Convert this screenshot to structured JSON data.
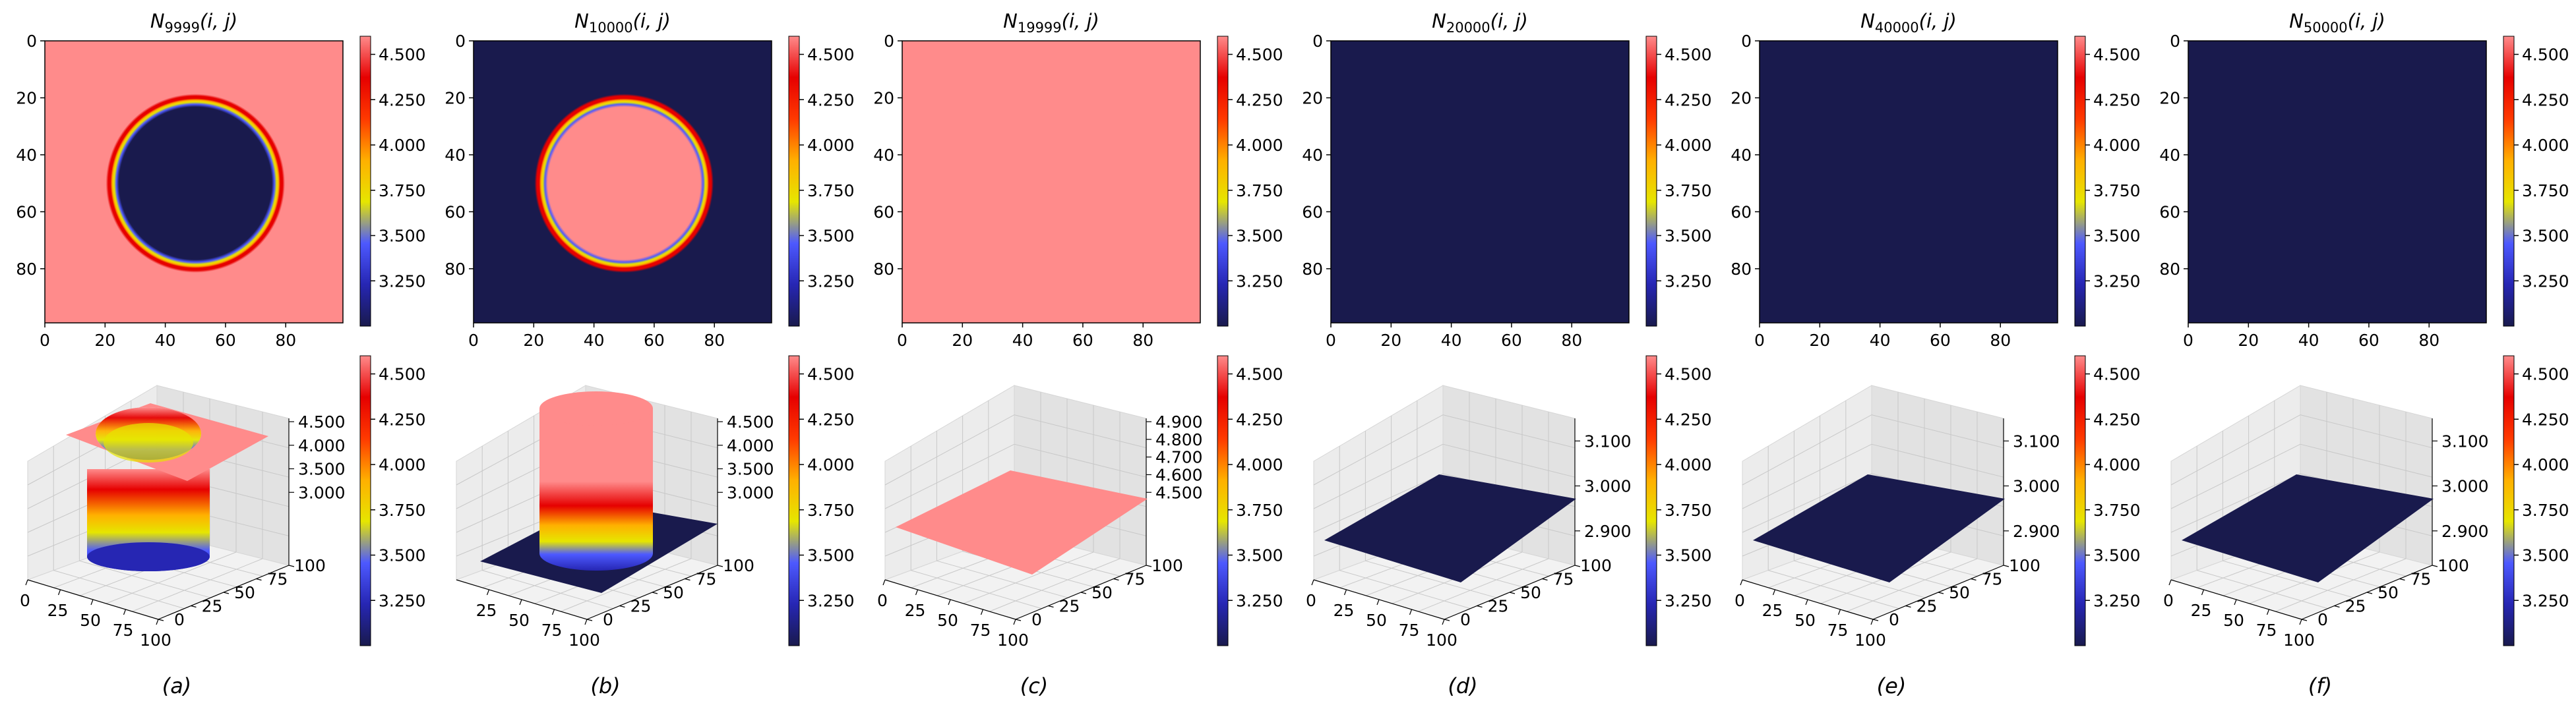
{
  "figure": {
    "caption_labels": [
      "(a)",
      "(b)",
      "(c)",
      "(d)",
      "(e)",
      "(f)"
    ]
  },
  "colors": {
    "low": "#191a4d",
    "high": "#ff8b8b",
    "colormap": [
      "#191a4d",
      "#2626b3",
      "#4d59ff",
      "#e6e600",
      "#ffb000",
      "#ff3a00",
      "#e60000",
      "#ff8b8b"
    ]
  },
  "chart_data": [
    {
      "type": "heatmap",
      "panel": "a",
      "title_base": "N",
      "title_sub": "9999",
      "title_args": "(i, j)",
      "pattern": "ring-high-outside",
      "ring": {
        "center_x": 50,
        "center_y": 50,
        "radius": 31
      },
      "xticks": [
        "0",
        "20",
        "40",
        "60",
        "80"
      ],
      "yticks": [
        "0",
        "20",
        "40",
        "60",
        "80"
      ],
      "xlim": [
        0,
        99
      ],
      "ylim": [
        0,
        99
      ],
      "colorbar": {
        "range": [
          3.0,
          4.6
        ],
        "ticks": [
          "4.500",
          "4.250",
          "4.000",
          "3.750",
          "3.500",
          "3.250"
        ]
      }
    },
    {
      "type": "heatmap",
      "panel": "b",
      "title_base": "N",
      "title_sub": "10000",
      "title_args": "(i, j)",
      "pattern": "ring-high-inside",
      "ring": {
        "center_x": 50,
        "center_y": 50,
        "radius": 31
      },
      "xticks": [
        "0",
        "20",
        "40",
        "60",
        "80"
      ],
      "yticks": [
        "0",
        "20",
        "40",
        "60",
        "80"
      ],
      "xlim": [
        0,
        99
      ],
      "ylim": [
        0,
        99
      ],
      "colorbar": {
        "range": [
          3.0,
          4.6
        ],
        "ticks": [
          "4.500",
          "4.250",
          "4.000",
          "3.750",
          "3.500",
          "3.250"
        ]
      }
    },
    {
      "type": "heatmap",
      "panel": "c",
      "title_base": "N",
      "title_sub": "19999",
      "title_args": "(i, j)",
      "pattern": "uniform-high",
      "xticks": [
        "0",
        "20",
        "40",
        "60",
        "80"
      ],
      "yticks": [
        "0",
        "20",
        "40",
        "60",
        "80"
      ],
      "xlim": [
        0,
        99
      ],
      "ylim": [
        0,
        99
      ],
      "colorbar": {
        "range": [
          3.0,
          4.6
        ],
        "ticks": [
          "4.500",
          "4.250",
          "4.000",
          "3.750",
          "3.500",
          "3.250"
        ]
      }
    },
    {
      "type": "heatmap",
      "panel": "d",
      "title_base": "N",
      "title_sub": "20000",
      "title_args": "(i, j)",
      "pattern": "uniform-low",
      "xticks": [
        "0",
        "20",
        "40",
        "60",
        "80"
      ],
      "yticks": [
        "0",
        "20",
        "40",
        "60",
        "80"
      ],
      "xlim": [
        0,
        99
      ],
      "ylim": [
        0,
        99
      ],
      "colorbar": {
        "range": [
          3.0,
          4.6
        ],
        "ticks": [
          "4.500",
          "4.250",
          "4.000",
          "3.750",
          "3.500",
          "3.250"
        ]
      }
    },
    {
      "type": "heatmap",
      "panel": "e",
      "title_base": "N",
      "title_sub": "40000",
      "title_args": "(i, j)",
      "pattern": "uniform-low",
      "xticks": [
        "0",
        "20",
        "40",
        "60",
        "80"
      ],
      "yticks": [
        "0",
        "20",
        "40",
        "60",
        "80"
      ],
      "xlim": [
        0,
        99
      ],
      "ylim": [
        0,
        99
      ],
      "colorbar": {
        "range": [
          3.0,
          4.6
        ],
        "ticks": [
          "4.500",
          "4.250",
          "4.000",
          "3.750",
          "3.500",
          "3.250"
        ]
      }
    },
    {
      "type": "heatmap",
      "panel": "f",
      "title_base": "N",
      "title_sub": "50000",
      "title_args": "(i, j)",
      "pattern": "uniform-low",
      "xticks": [
        "0",
        "20",
        "40",
        "60",
        "80"
      ],
      "yticks": [
        "0",
        "20",
        "40",
        "60",
        "80"
      ],
      "xlim": [
        0,
        99
      ],
      "ylim": [
        0,
        99
      ],
      "colorbar": {
        "range": [
          3.0,
          4.6
        ],
        "ticks": [
          "4.500",
          "4.250",
          "4.000",
          "3.750",
          "3.500",
          "3.250"
        ]
      }
    },
    {
      "type": "surface3d",
      "panel": "a",
      "shape": "ring-well",
      "xticks": [
        "0",
        "25",
        "50",
        "75",
        "100"
      ],
      "yticks": [
        "0",
        "25",
        "50",
        "75",
        "100"
      ],
      "zticks": [
        "4.500",
        "4.000",
        "3.500",
        "3.000"
      ],
      "colorbar": {
        "range": [
          3.0,
          4.6
        ],
        "ticks": [
          "4.500",
          "4.250",
          "4.000",
          "3.750",
          "3.500",
          "3.250"
        ]
      }
    },
    {
      "type": "surface3d",
      "panel": "b",
      "shape": "cylinder",
      "xticks": [
        "25",
        "50",
        "75",
        "100"
      ],
      "yticks": [
        "0",
        "25",
        "50",
        "75",
        "100"
      ],
      "zticks": [
        "4.500",
        "4.000",
        "3.500",
        "3.000"
      ],
      "colorbar": {
        "range": [
          3.0,
          4.6
        ],
        "ticks": [
          "4.500",
          "4.250",
          "4.000",
          "3.750",
          "3.500",
          "3.250"
        ]
      }
    },
    {
      "type": "surface3d",
      "panel": "c",
      "shape": "flat-high",
      "xticks": [
        "0",
        "25",
        "50",
        "75",
        "100"
      ],
      "yticks": [
        "0",
        "25",
        "50",
        "75",
        "100"
      ],
      "zticks": [
        "4.900",
        "4.800",
        "4.700",
        "4.600",
        "4.500"
      ],
      "colorbar": {
        "range": [
          3.0,
          4.6
        ],
        "ticks": [
          "4.500",
          "4.250",
          "4.000",
          "3.750",
          "3.500",
          "3.250"
        ]
      }
    },
    {
      "type": "surface3d",
      "panel": "d",
      "shape": "flat-low",
      "xticks": [
        "0",
        "25",
        "50",
        "75",
        "100"
      ],
      "yticks": [
        "0",
        "25",
        "50",
        "75",
        "100"
      ],
      "zticks": [
        "3.100",
        "3.000",
        "2.900"
      ],
      "colorbar": {
        "range": [
          3.0,
          4.6
        ],
        "ticks": [
          "4.500",
          "4.250",
          "4.000",
          "3.750",
          "3.500",
          "3.250"
        ]
      }
    },
    {
      "type": "surface3d",
      "panel": "e",
      "shape": "flat-low",
      "xticks": [
        "0",
        "25",
        "50",
        "75",
        "100"
      ],
      "yticks": [
        "0",
        "25",
        "50",
        "75",
        "100"
      ],
      "zticks": [
        "3.100",
        "3.000",
        "2.900"
      ],
      "colorbar": {
        "range": [
          3.0,
          4.6
        ],
        "ticks": [
          "4.500",
          "4.250",
          "4.000",
          "3.750",
          "3.500",
          "3.250"
        ]
      }
    },
    {
      "type": "surface3d",
      "panel": "f",
      "shape": "flat-low",
      "xticks": [
        "0",
        "25",
        "50",
        "75",
        "100"
      ],
      "yticks": [
        "0",
        "25",
        "50",
        "75",
        "100"
      ],
      "zticks": [
        "3.100",
        "3.000",
        "2.900"
      ],
      "colorbar": {
        "range": [
          3.0,
          4.6
        ],
        "ticks": [
          "4.500",
          "4.250",
          "4.000",
          "3.750",
          "3.500",
          "3.250"
        ]
      }
    }
  ]
}
